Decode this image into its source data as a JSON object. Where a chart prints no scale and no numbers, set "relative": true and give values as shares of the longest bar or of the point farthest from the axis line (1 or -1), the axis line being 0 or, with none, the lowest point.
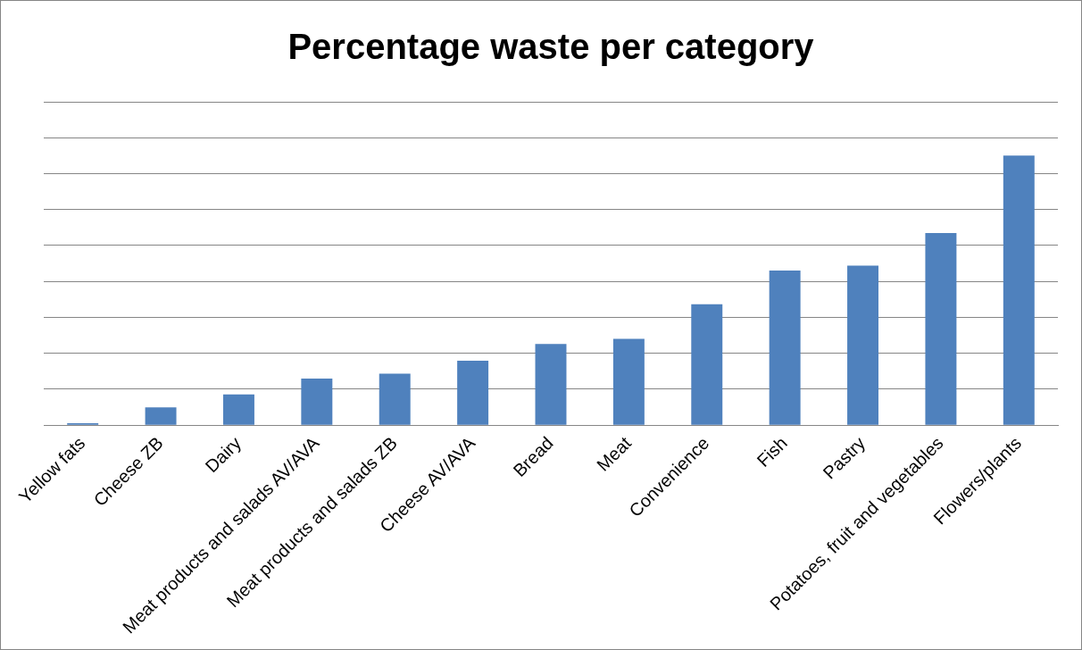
{
  "chart_data": {
    "type": "bar",
    "title": "Percentage waste per category",
    "relative": true,
    "grid": "y",
    "legend": false,
    "categories": [
      "Yellow fats",
      "Cheese ZB",
      "Dairy",
      "Meat products and salads AV/AVA",
      "Meat products and salads ZB",
      "Cheese AV/AVA",
      "Bread",
      "Meat",
      "Convenience",
      "Fish",
      "Pastry",
      "Potatoes, fruit and vegetables",
      "Flowers/plants"
    ],
    "color": "#4f81bd",
    "values": [
      0.007,
      0.066,
      0.114,
      0.173,
      0.191,
      0.239,
      0.301,
      0.32,
      0.449,
      0.574,
      0.592,
      0.713,
      1
    ]
  }
}
